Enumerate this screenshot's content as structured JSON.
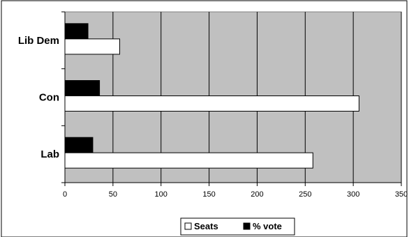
{
  "chart_data": {
    "type": "bar",
    "orientation": "horizontal",
    "categories": [
      "Lib Dem",
      "Con",
      "Lab"
    ],
    "series": [
      {
        "name": "Seats",
        "values": [
          57,
          306,
          258
        ],
        "color": "#ffffff"
      },
      {
        "name": "% vote",
        "values": [
          24,
          36,
          29
        ],
        "color": "#000000"
      }
    ],
    "xlim": [
      0,
      350
    ],
    "xticks": [
      0,
      50,
      100,
      150,
      200,
      250,
      300,
      350
    ],
    "title": "",
    "xlabel": "",
    "ylabel": "",
    "grid": true,
    "legend": "bottom",
    "plot_background": "#c0c0c0"
  }
}
